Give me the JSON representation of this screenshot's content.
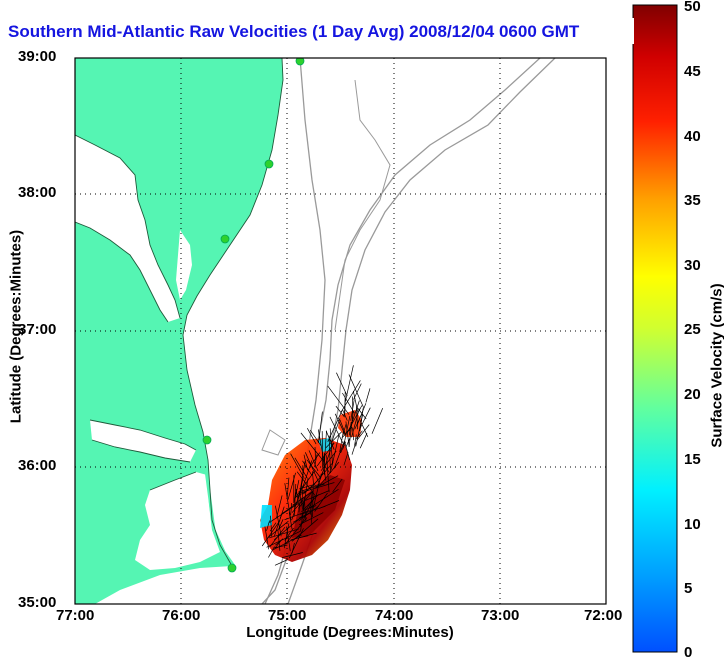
{
  "title": "Southern Mid-Atlantic Raw Velocities (1 Day Avg) 2008/12/04 0600 GMT",
  "axes": {
    "x_label": "Longitude (Degrees:Minutes)",
    "y_label": "Latitude (Degrees:Minutes)",
    "x_ticks": [
      "77:00",
      "76:00",
      "75:00",
      "74:00",
      "73:00",
      "72:00"
    ],
    "y_ticks": [
      "39:00",
      "38:00",
      "37:00",
      "36:00",
      "35:00"
    ]
  },
  "colorbar": {
    "label": "Surface Velocity (cm/s)",
    "ticks": [
      "50",
      "45",
      "40",
      "35",
      "30",
      "25",
      "20",
      "15",
      "10",
      "5",
      "0"
    ],
    "min": 0,
    "max": 50
  },
  "colors": {
    "land": "#55f5b3",
    "title": "#1515e0",
    "bathymetry": "#9a9a9a",
    "station": "#2ed12e"
  },
  "extent": {
    "lon": [
      -77,
      -72
    ],
    "lat": [
      35,
      39
    ]
  }
}
